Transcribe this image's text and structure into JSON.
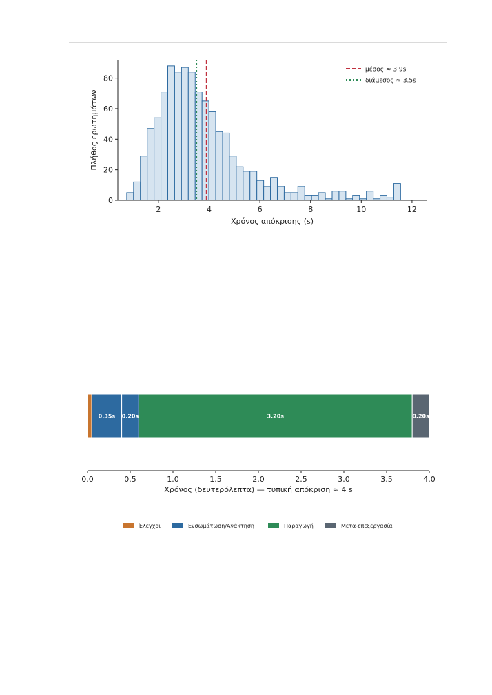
{
  "chart_data": [
    {
      "type": "histogram",
      "xlabel": "Χρόνος απόκρισης (s)",
      "ylabel": "Πλήθος ερωτημάτων",
      "xlim": [
        0.4,
        12.6
      ],
      "ylim": [
        0,
        92
      ],
      "xticks": [
        2,
        4,
        6,
        8,
        10,
        12
      ],
      "yticks": [
        0,
        20,
        40,
        60,
        80
      ],
      "bin_start": 0.75,
      "bin_width": 0.27,
      "counts": [
        5,
        12,
        29,
        47,
        54,
        71,
        88,
        84,
        87,
        84,
        71,
        65,
        58,
        45,
        44,
        29,
        22,
        19,
        19,
        13,
        9,
        15,
        9,
        5,
        5,
        9,
        3,
        3,
        5,
        1,
        6,
        6,
        1,
        3,
        1,
        6,
        1,
        3,
        2,
        11
      ],
      "bar_fill": "#d6e4f0",
      "bar_edge": "#2d6aa0",
      "mean": {
        "value": 3.9,
        "label": "μέσος ≈ 3.9s",
        "color": "#c0313f"
      },
      "median": {
        "value": 3.5,
        "label": "διάμεσος ≈ 3.5s",
        "color": "#2e8b57"
      },
      "legend_position": "top-right",
      "grid": false
    },
    {
      "type": "stacked-horizontal-bar",
      "xlabel": "Χρόνος (δευτερόλεπτα) — τυπική απόκριση ≈ 4 s",
      "xlim": [
        0,
        4.0
      ],
      "xticks": [
        0.0,
        0.5,
        1.0,
        1.5,
        2.0,
        2.5,
        3.0,
        3.5,
        4.0
      ],
      "segments": [
        {
          "category": "Έλεγχοι",
          "value": 0.05,
          "label": "",
          "color": "#c8752f"
        },
        {
          "category": "Ενσωμάτωση/Ανάκτηση",
          "value": 0.35,
          "label": "0.35s",
          "color": "#2d6aa0"
        },
        {
          "category": "Ενσωμάτωση/Ανάκτηση",
          "value": 0.2,
          "label": "0.20s",
          "color": "#2d6aa0"
        },
        {
          "category": "Παραγωγή",
          "value": 3.2,
          "label": "3.20s",
          "color": "#2e8b57"
        },
        {
          "category": "Μετα-επεξεργασία",
          "value": 0.2,
          "label": "0.20s",
          "color": "#5a6672"
        }
      ],
      "legend": [
        {
          "name": "Έλεγχοι",
          "color": "#c8752f"
        },
        {
          "name": "Ενσωμάτωση/Ανάκτηση",
          "color": "#2d6aa0"
        },
        {
          "name": "Παραγωγή",
          "color": "#2e8b57"
        },
        {
          "name": "Μετα-επεξεργασία",
          "color": "#5a6672"
        }
      ],
      "legend_position": "bottom-center"
    }
  ]
}
